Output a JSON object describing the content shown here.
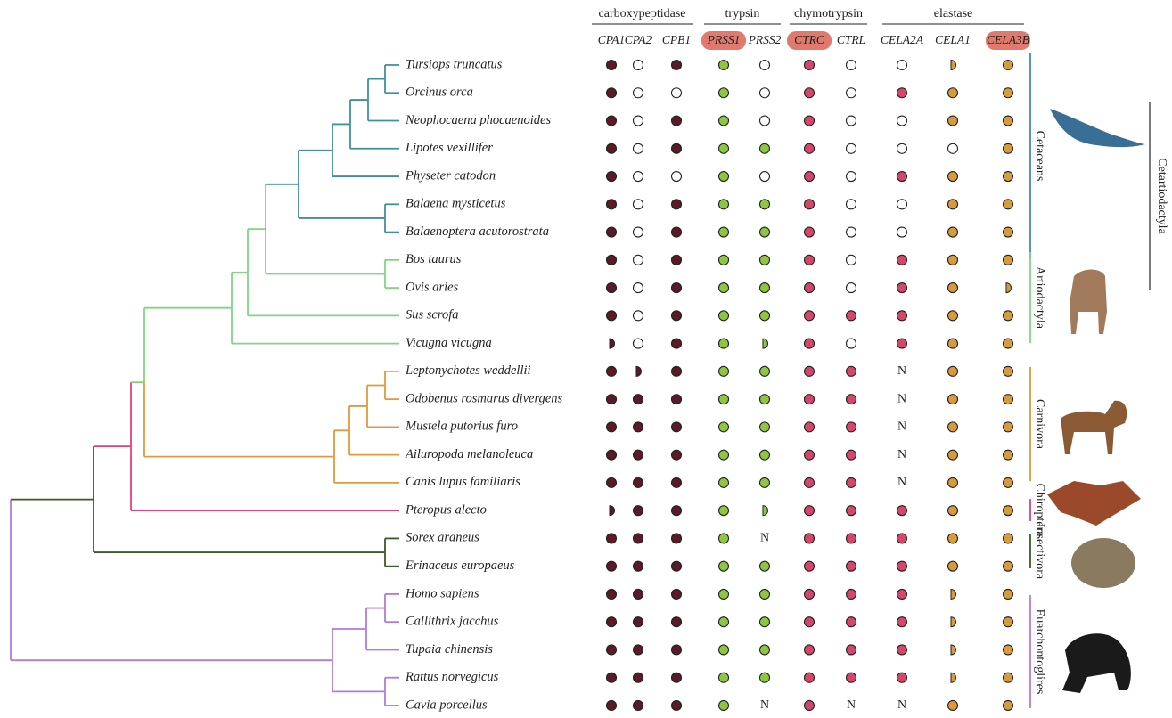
{
  "gene_groups": [
    "carboxypeptidase",
    "trypsin",
    "chymotrypsin",
    "elastase"
  ],
  "genes": [
    "CPA1",
    "CPA2",
    "CPB1",
    "PRSS1",
    "PRSS2",
    "CTRC",
    "CTRL",
    "CELA2A",
    "CELA1",
    "CELA3B"
  ],
  "species": [
    {
      "name": "Tursiops truncatus",
      "states": [
        1,
        0,
        1,
        1,
        0,
        1,
        0,
        0,
        0.5,
        1
      ]
    },
    {
      "name": "Orcinus orca",
      "states": [
        1,
        0,
        0,
        1,
        0,
        1,
        0,
        1,
        1,
        1
      ]
    },
    {
      "name": "Neophocaena phocaenoides",
      "states": [
        1,
        0,
        1,
        1,
        0,
        1,
        0,
        0,
        1,
        1
      ]
    },
    {
      "name": "Lipotes vexillifer",
      "states": [
        1,
        0,
        1,
        1,
        1,
        1,
        0,
        0,
        0,
        1
      ]
    },
    {
      "name": "Physeter catodon",
      "states": [
        1,
        0,
        0,
        1,
        0,
        1,
        0,
        1,
        1,
        1
      ]
    },
    {
      "name": "Balaena mysticetus",
      "states": [
        1,
        0,
        1,
        1,
        1,
        1,
        0,
        0,
        1,
        1
      ]
    },
    {
      "name": "Balaenoptera acutorostrata",
      "states": [
        1,
        0,
        1,
        1,
        1,
        1,
        0,
        0,
        1,
        1
      ]
    },
    {
      "name": "Bos taurus",
      "states": [
        1,
        0,
        1,
        1,
        1,
        1,
        0,
        1,
        1,
        1
      ]
    },
    {
      "name": "Ovis aries",
      "states": [
        1,
        0,
        1,
        1,
        1,
        1,
        0,
        1,
        1,
        0.5
      ]
    },
    {
      "name": "Sus scrofa",
      "states": [
        1,
        0,
        1,
        1,
        1,
        1,
        1,
        1,
        1,
        1
      ]
    },
    {
      "name": "Vicugna vicugna",
      "states": [
        0.5,
        0,
        1,
        1,
        0.5,
        1,
        0,
        1,
        1,
        1
      ]
    },
    {
      "name": "Leptonychotes weddellii",
      "states": [
        1,
        0.5,
        1,
        1,
        1,
        1,
        1,
        "N",
        1,
        1
      ]
    },
    {
      "name": "Odobenus rosmarus divergens",
      "states": [
        1,
        1,
        1,
        1,
        1,
        1,
        1,
        "N",
        1,
        1
      ]
    },
    {
      "name": "Mustela putorius furo",
      "states": [
        1,
        1,
        1,
        1,
        1,
        1,
        1,
        "N",
        1,
        1
      ]
    },
    {
      "name": "Ailuropoda melanoleuca",
      "states": [
        1,
        1,
        1,
        1,
        1,
        1,
        1,
        "N",
        1,
        1
      ]
    },
    {
      "name": "Canis lupus familiaris",
      "states": [
        1,
        1,
        1,
        1,
        1,
        1,
        1,
        "N",
        1,
        1
      ]
    },
    {
      "name": "Pteropus alecto",
      "states": [
        0.5,
        1,
        1,
        1,
        0.5,
        1,
        1,
        1,
        1,
        1
      ]
    },
    {
      "name": "Sorex araneus",
      "states": [
        1,
        1,
        1,
        1,
        "N",
        1,
        1,
        1,
        1,
        1
      ]
    },
    {
      "name": "Erinaceus europaeus",
      "states": [
        1,
        1,
        1,
        1,
        1,
        1,
        1,
        1,
        1,
        1
      ]
    },
    {
      "name": "Homo sapiens",
      "states": [
        1,
        1,
        1,
        1,
        1,
        1,
        1,
        1,
        0.5,
        1
      ]
    },
    {
      "name": "Callithrix jacchus",
      "states": [
        1,
        1,
        1,
        1,
        1,
        1,
        1,
        1,
        0.5,
        1
      ]
    },
    {
      "name": "Tupaia chinensis",
      "states": [
        1,
        1,
        1,
        1,
        1,
        1,
        1,
        1,
        0.5,
        1
      ]
    },
    {
      "name": "Rattus norvegicus",
      "states": [
        1,
        1,
        1,
        1,
        1,
        1,
        1,
        1,
        0.5,
        1
      ]
    },
    {
      "name": "Cavia porcellus",
      "states": [
        1,
        1,
        1,
        1,
        "N",
        1,
        "N",
        "N",
        1,
        1
      ]
    }
  ],
  "clades": [
    "Cetaceans",
    "Artiodactyla",
    "Carnivora",
    "Chiroptera",
    "Insectivora",
    "Euarchontoglires"
  ],
  "superclade": "Cetartiodactyla"
}
